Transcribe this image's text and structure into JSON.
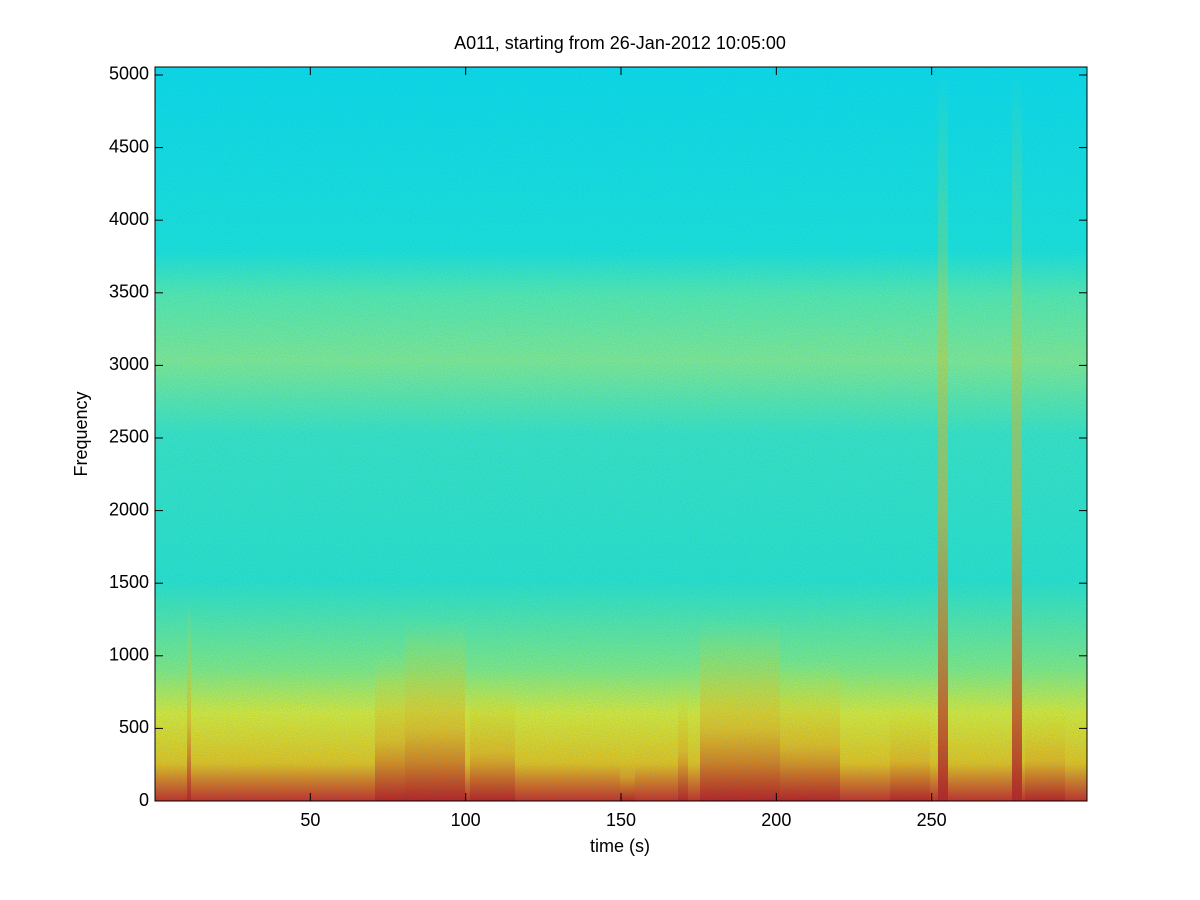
{
  "chart_data": {
    "type": "spectrogram",
    "title": "A011, starting from 26-Jan-2012 10:05:00",
    "x_label": "time (s)",
    "y_label": "Frequency",
    "xlim": [
      0,
      300
    ],
    "xticks": [
      50,
      100,
      150,
      200,
      250
    ],
    "ylim": [
      0,
      5055
    ],
    "yticks": [
      0,
      500,
      1000,
      1500,
      2000,
      2500,
      3000,
      3500,
      4000,
      4500,
      5000
    ],
    "colormap": "jet"
  }
}
